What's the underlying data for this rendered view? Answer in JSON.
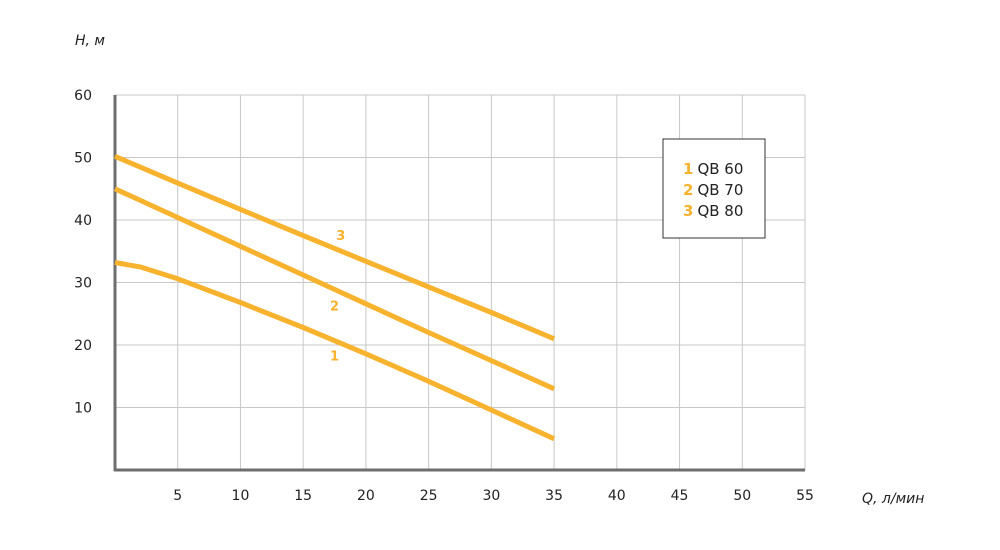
{
  "chart_data": {
    "type": "line",
    "xlabel": "Q, л/мин",
    "ylabel": "H, м",
    "xlim": [
      0,
      55
    ],
    "ylim": [
      0,
      60
    ],
    "x_ticks": [
      5,
      10,
      15,
      20,
      25,
      30,
      35,
      40,
      45,
      50,
      55
    ],
    "y_ticks": [
      10,
      20,
      30,
      40,
      50,
      60
    ],
    "grid": true,
    "legend_position": "top-right",
    "line_color": "#F7B22E",
    "series": [
      {
        "name": "QB 60",
        "number": "1",
        "x": [
          0,
          2,
          5,
          10,
          15,
          20,
          25,
          30,
          35
        ],
        "y": [
          33.2,
          32.5,
          30.6,
          26.8,
          22.8,
          18.6,
          14.2,
          9.6,
          5.0
        ]
      },
      {
        "name": "QB 70",
        "number": "2",
        "x": [
          0,
          5,
          10,
          15,
          20,
          25,
          30,
          35
        ],
        "y": [
          45.0,
          40.4,
          35.8,
          31.2,
          26.6,
          22.0,
          17.5,
          13.0
        ]
      },
      {
        "name": "QB 80",
        "number": "3",
        "x": [
          0,
          5,
          10,
          15,
          20,
          25,
          30,
          35
        ],
        "y": [
          50.2,
          45.9,
          41.7,
          37.5,
          33.4,
          29.3,
          25.2,
          21.0
        ]
      }
    ],
    "curve_labels": [
      {
        "text": "1",
        "x": 17.5,
        "y": 17.5
      },
      {
        "text": "2",
        "x": 17.5,
        "y": 25.5
      },
      {
        "text": "3",
        "x": 18.0,
        "y": 36.8
      }
    ]
  }
}
